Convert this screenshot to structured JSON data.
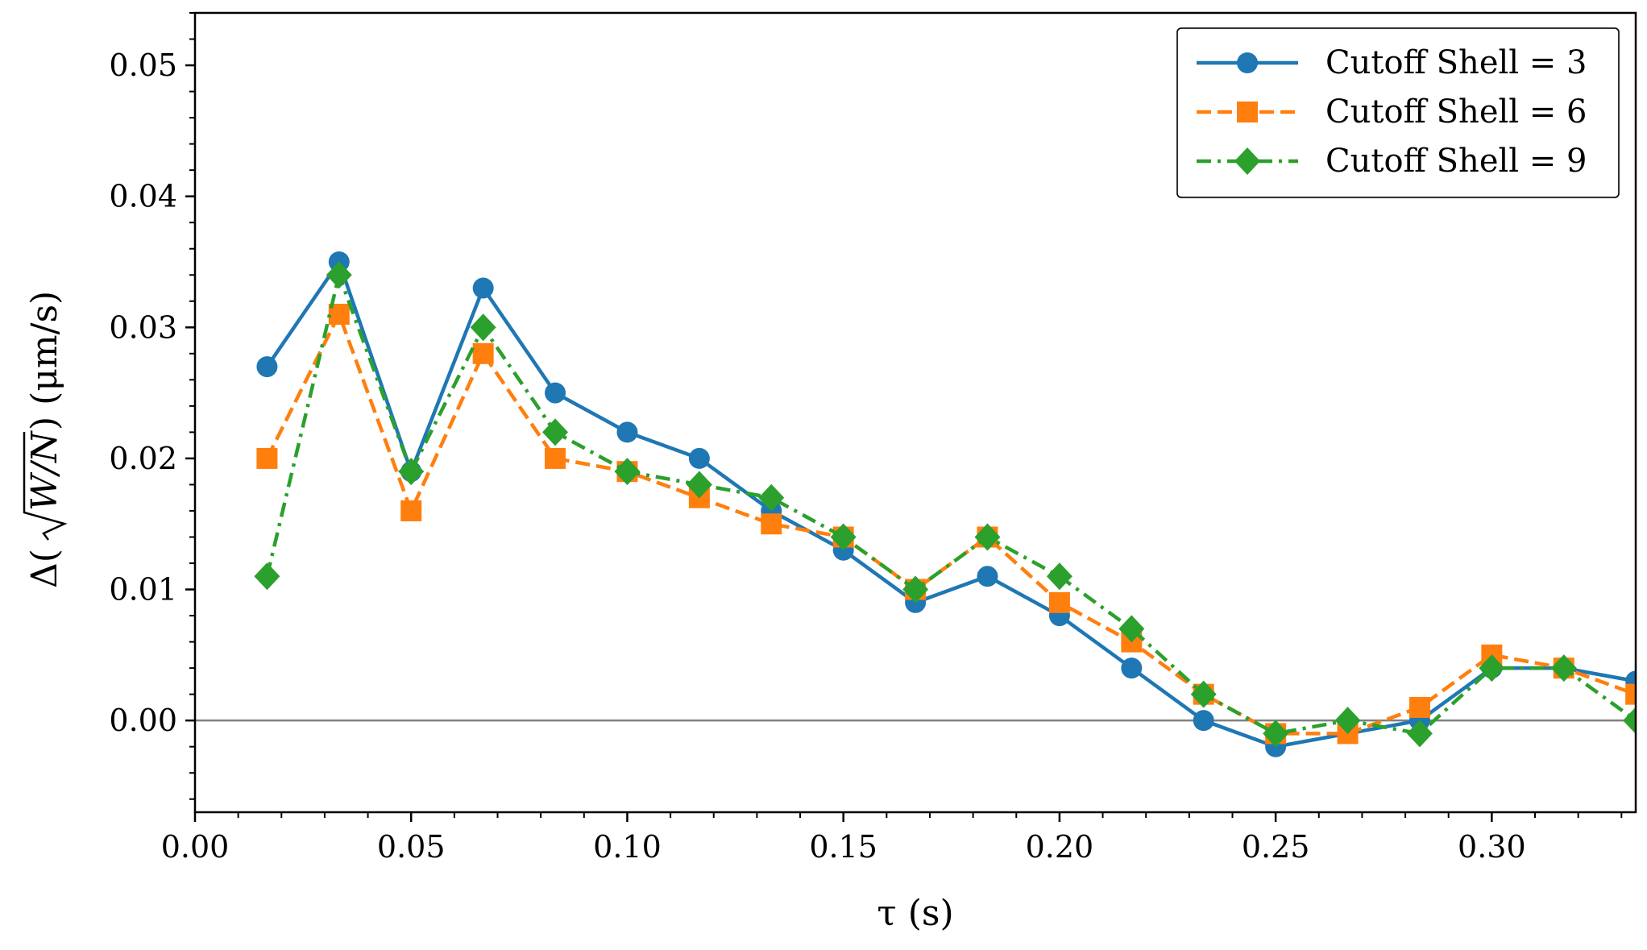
{
  "chart_data": {
    "type": "line",
    "title": "",
    "xlabel": "τ (s)",
    "ylabel_prefix": "Δ(",
    "ylabel_var": "W/N",
    "ylabel_suffix": ") (μm/s)",
    "xlim": [
      0.0,
      0.3333
    ],
    "ylim": [
      -0.007,
      0.054
    ],
    "x_ticks": [
      0.0,
      0.05,
      0.1,
      0.15,
      0.2,
      0.25,
      0.3
    ],
    "x_tick_labels": [
      "0.00",
      "0.05",
      "0.10",
      "0.15",
      "0.20",
      "0.25",
      "0.30"
    ],
    "y_ticks": [
      0.0,
      0.01,
      0.02,
      0.03,
      0.04,
      0.05
    ],
    "y_tick_labels": [
      "0.00",
      "0.01",
      "0.02",
      "0.03",
      "0.04",
      "0.05"
    ],
    "reference_line_y": 0.0,
    "legend_position": "top-right",
    "x": [
      0.01667,
      0.03333,
      0.05,
      0.06667,
      0.08333,
      0.1,
      0.11667,
      0.13333,
      0.15,
      0.16667,
      0.18333,
      0.2,
      0.21667,
      0.23333,
      0.25,
      0.26667,
      0.28333,
      0.3,
      0.31667,
      0.33333
    ],
    "series": [
      {
        "name": "Cutoff Shell = 3",
        "color": "#1f77b4",
        "marker": "circle",
        "linestyle": "solid",
        "values": [
          0.027,
          0.035,
          0.019,
          0.033,
          0.025,
          0.022,
          0.02,
          0.016,
          0.013,
          0.009,
          0.011,
          0.008,
          0.004,
          0.0,
          -0.002,
          -0.001,
          0.0,
          0.004,
          0.004,
          0.003
        ]
      },
      {
        "name": "Cutoff Shell = 6",
        "color": "#ff7f0e",
        "marker": "square",
        "linestyle": "dashed",
        "values": [
          0.02,
          0.031,
          0.016,
          0.028,
          0.02,
          0.019,
          0.017,
          0.015,
          0.014,
          0.01,
          0.014,
          0.009,
          0.006,
          0.002,
          -0.001,
          -0.001,
          0.001,
          0.005,
          0.004,
          0.002
        ]
      },
      {
        "name": "Cutoff Shell = 9",
        "color": "#2ca02c",
        "marker": "diamond",
        "linestyle": "dashdot",
        "values": [
          0.011,
          0.034,
          0.019,
          0.03,
          0.022,
          0.019,
          0.018,
          0.017,
          0.014,
          0.01,
          0.014,
          0.011,
          0.007,
          0.002,
          -0.001,
          0.0,
          -0.001,
          0.004,
          0.004,
          0.0
        ]
      }
    ]
  }
}
